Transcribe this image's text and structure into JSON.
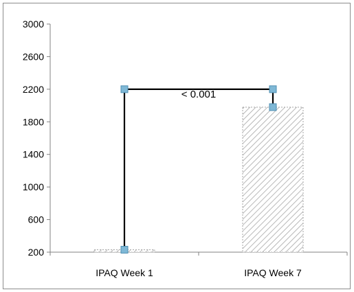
{
  "chart_data": {
    "type": "bar",
    "title": "",
    "xlabel": "",
    "ylabel": "",
    "categories": [
      "IPAQ Week 1",
      "IPAQ Week 7"
    ],
    "values": [
      230,
      1980
    ],
    "ylim": [
      200,
      3000
    ],
    "yticks": [
      200,
      600,
      1000,
      1400,
      1800,
      2200,
      2600,
      3000
    ],
    "ytick_labels": [
      "200",
      "600",
      "1000",
      "1400",
      "1800",
      "2200",
      "2600",
      "3000"
    ],
    "grid": false,
    "legend": "none",
    "bar_fill": "hatched",
    "colors": {
      "bar_hatch": "#a6a6a6",
      "bar_border": "#a6a6a6",
      "bracket_line": "#000000",
      "marker_fill": "#7fb8d6",
      "marker_edge": "#4f8fb3",
      "axis": "#808080"
    },
    "significance_bracket": {
      "label": "< 0.001",
      "from_category": "IPAQ Week 1",
      "to_category": "IPAQ Week 7",
      "height": 2200,
      "points": [
        {
          "category": "IPAQ Week 1",
          "value": 230
        },
        {
          "category": "IPAQ Week 1",
          "value": 2200
        },
        {
          "category": "IPAQ Week 7",
          "value": 2200
        },
        {
          "category": "IPAQ Week 7",
          "value": 1980
        }
      ]
    }
  }
}
